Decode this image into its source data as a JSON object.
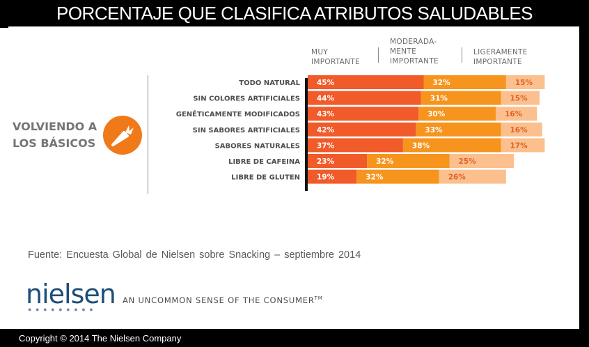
{
  "title": "PORCENTAJE QUE CLASIFICA ATRIBUTOS SALUDABLES",
  "section_label": "VOLVIENDO A LOS BÁSICOS",
  "icon": "carrot-icon",
  "colors": {
    "muy_importante": "#f15a29",
    "moderadamente_importante": "#f7941d",
    "ligeramente_importante": "#fbc08d",
    "title_bg": "#000000",
    "icon_bg": "#f07a1a"
  },
  "headers": [
    "MUY\nIMPORTANTE",
    "MODERADA-\nMENTE\nIMPORTANTE",
    "LIGERAMENTE\nIMPORTANTE"
  ],
  "chart_data": {
    "type": "bar",
    "stacked": true,
    "orientation": "horizontal",
    "categories": [
      "TODO NATURAL",
      "SIN COLORES ARTIFICIALES",
      "GENÉTICAMENTE MODIFICADOS",
      "SIN SABORES ARTIFICIALES",
      "SABORES NATURALES",
      "LIBRE DE CAFEINA",
      "LIBRE DE GLUTEN"
    ],
    "series": [
      {
        "name": "MUY IMPORTANTE",
        "values": [
          45,
          44,
          43,
          42,
          37,
          23,
          19
        ],
        "labels": [
          "45%",
          "44%",
          "43%",
          "42%",
          "37%",
          "23%",
          "19%"
        ]
      },
      {
        "name": "MODERADAMENTE IMPORTANTE",
        "values": [
          32,
          31,
          30,
          33,
          38,
          32,
          32
        ],
        "labels": [
          "32%",
          "31%",
          "30%",
          "33%",
          "38%",
          "32%",
          "32%"
        ]
      },
      {
        "name": "LIGERAMENTE IMPORTANTE",
        "values": [
          15,
          15,
          16,
          16,
          17,
          25,
          26
        ],
        "labels": [
          "15%",
          "15%",
          "16%",
          "16%",
          "17%",
          "25%",
          "26%"
        ]
      }
    ]
  },
  "source": "Fuente:  Encuesta  Global de Nielsen sobre Snacking – septiembre 2014",
  "logo": {
    "name": "nielsen",
    "dots": "●●●●●●●●●"
  },
  "tagline": "AN UNCOMMON SENSE OF THE CONSUMER",
  "tagline_mark": "TM",
  "copyright": "Copyright © 2014 The Nielsen Company"
}
